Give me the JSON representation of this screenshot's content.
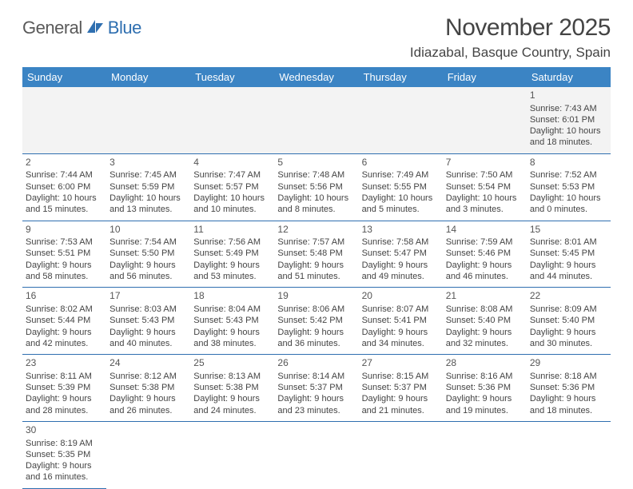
{
  "logo": {
    "word1": "General",
    "word2": "Blue"
  },
  "title": "November 2025",
  "location": "Idiazabal, Basque Country, Spain",
  "colors": {
    "header_bg": "#3b84c4",
    "header_text": "#ffffff",
    "border": "#2f6fb0",
    "week1_bg": "#f3f3f3",
    "logo_blue": "#2f6fb0",
    "logo_gray": "#5a5a5a"
  },
  "day_headers": [
    "Sunday",
    "Monday",
    "Tuesday",
    "Wednesday",
    "Thursday",
    "Friday",
    "Saturday"
  ],
  "weeks": [
    [
      null,
      null,
      null,
      null,
      null,
      null,
      {
        "n": "1",
        "sr": "7:43 AM",
        "ss": "6:01 PM",
        "dl": "10 hours and 18 minutes."
      }
    ],
    [
      {
        "n": "2",
        "sr": "7:44 AM",
        "ss": "6:00 PM",
        "dl": "10 hours and 15 minutes."
      },
      {
        "n": "3",
        "sr": "7:45 AM",
        "ss": "5:59 PM",
        "dl": "10 hours and 13 minutes."
      },
      {
        "n": "4",
        "sr": "7:47 AM",
        "ss": "5:57 PM",
        "dl": "10 hours and 10 minutes."
      },
      {
        "n": "5",
        "sr": "7:48 AM",
        "ss": "5:56 PM",
        "dl": "10 hours and 8 minutes."
      },
      {
        "n": "6",
        "sr": "7:49 AM",
        "ss": "5:55 PM",
        "dl": "10 hours and 5 minutes."
      },
      {
        "n": "7",
        "sr": "7:50 AM",
        "ss": "5:54 PM",
        "dl": "10 hours and 3 minutes."
      },
      {
        "n": "8",
        "sr": "7:52 AM",
        "ss": "5:53 PM",
        "dl": "10 hours and 0 minutes."
      }
    ],
    [
      {
        "n": "9",
        "sr": "7:53 AM",
        "ss": "5:51 PM",
        "dl": "9 hours and 58 minutes."
      },
      {
        "n": "10",
        "sr": "7:54 AM",
        "ss": "5:50 PM",
        "dl": "9 hours and 56 minutes."
      },
      {
        "n": "11",
        "sr": "7:56 AM",
        "ss": "5:49 PM",
        "dl": "9 hours and 53 minutes."
      },
      {
        "n": "12",
        "sr": "7:57 AM",
        "ss": "5:48 PM",
        "dl": "9 hours and 51 minutes."
      },
      {
        "n": "13",
        "sr": "7:58 AM",
        "ss": "5:47 PM",
        "dl": "9 hours and 49 minutes."
      },
      {
        "n": "14",
        "sr": "7:59 AM",
        "ss": "5:46 PM",
        "dl": "9 hours and 46 minutes."
      },
      {
        "n": "15",
        "sr": "8:01 AM",
        "ss": "5:45 PM",
        "dl": "9 hours and 44 minutes."
      }
    ],
    [
      {
        "n": "16",
        "sr": "8:02 AM",
        "ss": "5:44 PM",
        "dl": "9 hours and 42 minutes."
      },
      {
        "n": "17",
        "sr": "8:03 AM",
        "ss": "5:43 PM",
        "dl": "9 hours and 40 minutes."
      },
      {
        "n": "18",
        "sr": "8:04 AM",
        "ss": "5:43 PM",
        "dl": "9 hours and 38 minutes."
      },
      {
        "n": "19",
        "sr": "8:06 AM",
        "ss": "5:42 PM",
        "dl": "9 hours and 36 minutes."
      },
      {
        "n": "20",
        "sr": "8:07 AM",
        "ss": "5:41 PM",
        "dl": "9 hours and 34 minutes."
      },
      {
        "n": "21",
        "sr": "8:08 AM",
        "ss": "5:40 PM",
        "dl": "9 hours and 32 minutes."
      },
      {
        "n": "22",
        "sr": "8:09 AM",
        "ss": "5:40 PM",
        "dl": "9 hours and 30 minutes."
      }
    ],
    [
      {
        "n": "23",
        "sr": "8:11 AM",
        "ss": "5:39 PM",
        "dl": "9 hours and 28 minutes."
      },
      {
        "n": "24",
        "sr": "8:12 AM",
        "ss": "5:38 PM",
        "dl": "9 hours and 26 minutes."
      },
      {
        "n": "25",
        "sr": "8:13 AM",
        "ss": "5:38 PM",
        "dl": "9 hours and 24 minutes."
      },
      {
        "n": "26",
        "sr": "8:14 AM",
        "ss": "5:37 PM",
        "dl": "9 hours and 23 minutes."
      },
      {
        "n": "27",
        "sr": "8:15 AM",
        "ss": "5:37 PM",
        "dl": "9 hours and 21 minutes."
      },
      {
        "n": "28",
        "sr": "8:16 AM",
        "ss": "5:36 PM",
        "dl": "9 hours and 19 minutes."
      },
      {
        "n": "29",
        "sr": "8:18 AM",
        "ss": "5:36 PM",
        "dl": "9 hours and 18 minutes."
      }
    ],
    [
      {
        "n": "30",
        "sr": "8:19 AM",
        "ss": "5:35 PM",
        "dl": "9 hours and 16 minutes."
      },
      null,
      null,
      null,
      null,
      null,
      null
    ]
  ],
  "labels": {
    "sunrise": "Sunrise: ",
    "sunset": "Sunset: ",
    "daylight": "Daylight: "
  }
}
